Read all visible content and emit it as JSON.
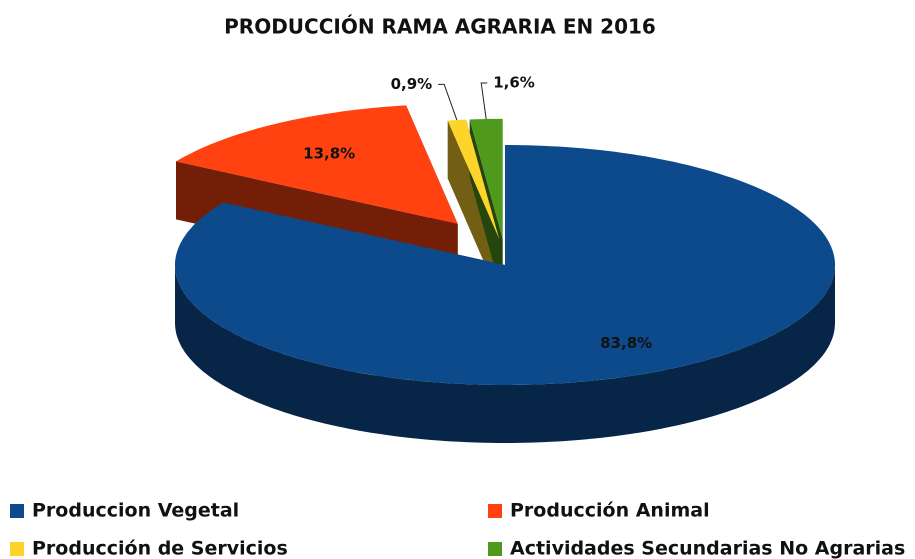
{
  "chart_data": {
    "type": "pie",
    "title": "PRODUCCIÓN RAMA AGRARIA EN 2016",
    "categories": [
      "Produccion Vegetal",
      "Producción Animal",
      "Producción de Servicios",
      "Actividades Secundarias No Agrarias"
    ],
    "values": [
      83.8,
      13.8,
      0.9,
      1.6
    ],
    "value_labels": [
      "83,8%",
      "13,8%",
      "0,9%",
      "1,6%"
    ],
    "colors": [
      "#0d4a8c",
      "#ff4210",
      "#ffd42a",
      "#4f9a1c"
    ],
    "legend": "bottom"
  }
}
